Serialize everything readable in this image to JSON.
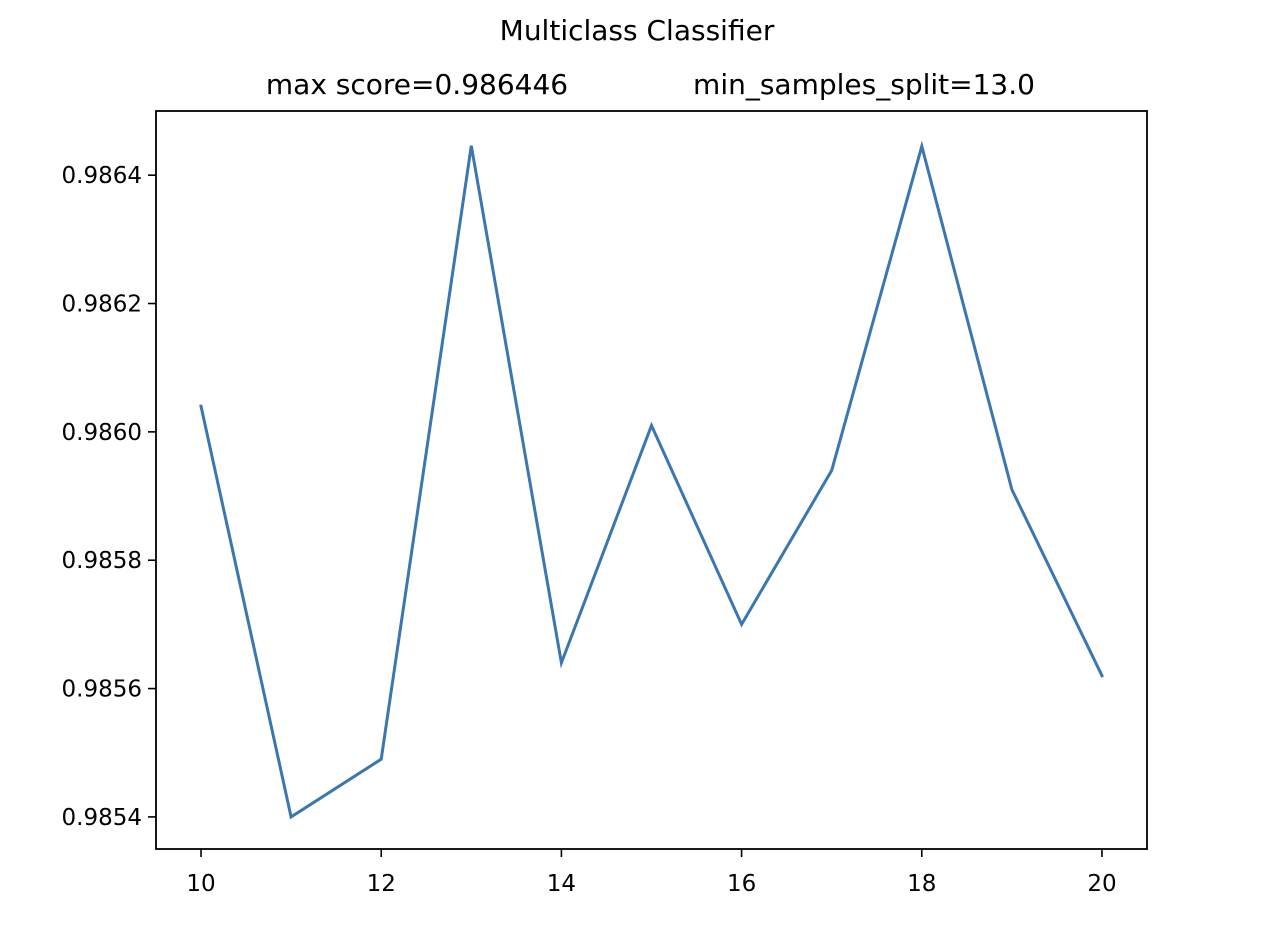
{
  "chart_data": {
    "type": "line",
    "title": "Multiclass Classifier",
    "subtitle_left": "max score=0.986446",
    "subtitle_right": "min_samples_split=13.0",
    "xlabel": "",
    "ylabel": "",
    "x": [
      10,
      11,
      12,
      13,
      14,
      15,
      16,
      17,
      18,
      19,
      20
    ],
    "series": [
      {
        "values": [
          0.98604,
          0.9854,
          0.98549,
          0.986446,
          0.98564,
          0.98601,
          0.9857,
          0.98594,
          0.986445,
          0.98591,
          0.98562
        ],
        "color": "#3a76b0"
      }
    ],
    "xlim": [
      9.5,
      20.5
    ],
    "ylim": [
      0.98535,
      0.9865
    ],
    "xticks": [
      10,
      12,
      14,
      16,
      18,
      20
    ],
    "xtick_labels": [
      "10",
      "12",
      "14",
      "16",
      "18",
      "20"
    ],
    "yticks": [
      0.9854,
      0.9856,
      0.9858,
      0.986,
      0.9862,
      0.9864
    ],
    "ytick_labels": [
      "0.9854",
      "0.9856",
      "0.9858",
      "0.9860",
      "0.9862",
      "0.9864"
    ],
    "grid": false,
    "legend": "none"
  }
}
